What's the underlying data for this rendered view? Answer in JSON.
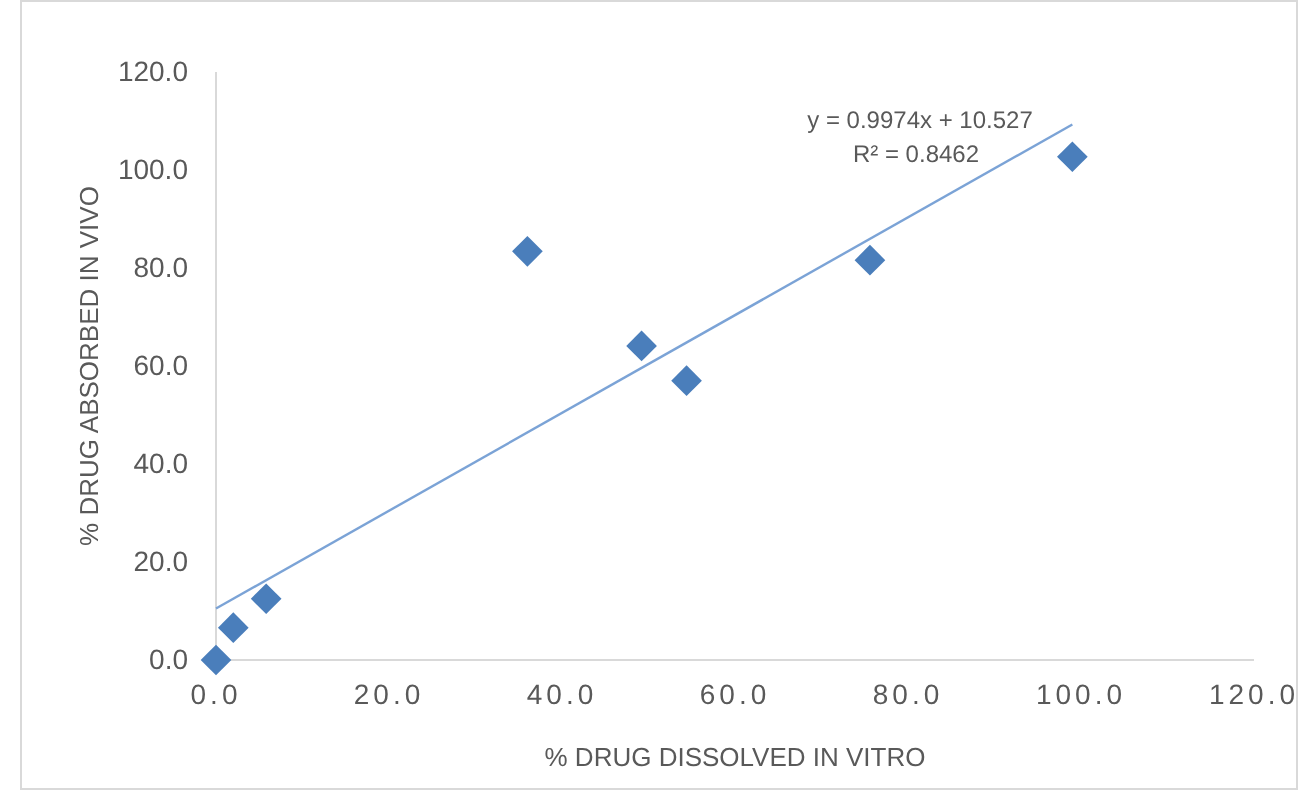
{
  "chart_data": {
    "type": "scatter",
    "xlabel": "% DRUG DISSOLVED IN VITRO",
    "ylabel": "% DRUG ABSORBED IN VIVO",
    "annotations": [
      "y = 0.9974x + 10.527",
      "R² = 0.8462"
    ],
    "xlim": [
      0,
      120
    ],
    "xticks": [
      {
        "value": 0,
        "label": "0.0"
      },
      {
        "value": 20,
        "label": "20.0"
      },
      {
        "value": 40,
        "label": "40.0"
      },
      {
        "value": 60,
        "label": "60.0"
      },
      {
        "value": 80,
        "label": "80.0"
      },
      {
        "value": 100,
        "label": "100.0"
      },
      {
        "value": 120,
        "label": "120.0"
      }
    ],
    "ylim": [
      0,
      120
    ],
    "yticks": [
      {
        "value": 0,
        "label": "0.0"
      },
      {
        "value": 20,
        "label": "20.0"
      },
      {
        "value": 40,
        "label": "40.0"
      },
      {
        "value": 60,
        "label": "60.0"
      },
      {
        "value": 80,
        "label": "80.0"
      },
      {
        "value": 100,
        "label": "100.0"
      },
      {
        "value": 120,
        "label": "120.0"
      }
    ],
    "grid": false,
    "marker": "diamond",
    "series": [
      {
        "type": "scatter",
        "color": "#4a7ebb",
        "x": [
          0,
          2.0,
          5.8,
          36.0,
          49.2,
          54.4,
          75.6,
          99.0
        ],
        "values": [
          0,
          6.6,
          12.5,
          83.4,
          64.1,
          57.0,
          81.6,
          102.7
        ]
      },
      {
        "type": "line",
        "color": "#7ba3d6",
        "x": [
          0,
          99.0
        ],
        "values": [
          10.5,
          109.3
        ],
        "line_style": "solid",
        "marker": "none"
      }
    ]
  }
}
